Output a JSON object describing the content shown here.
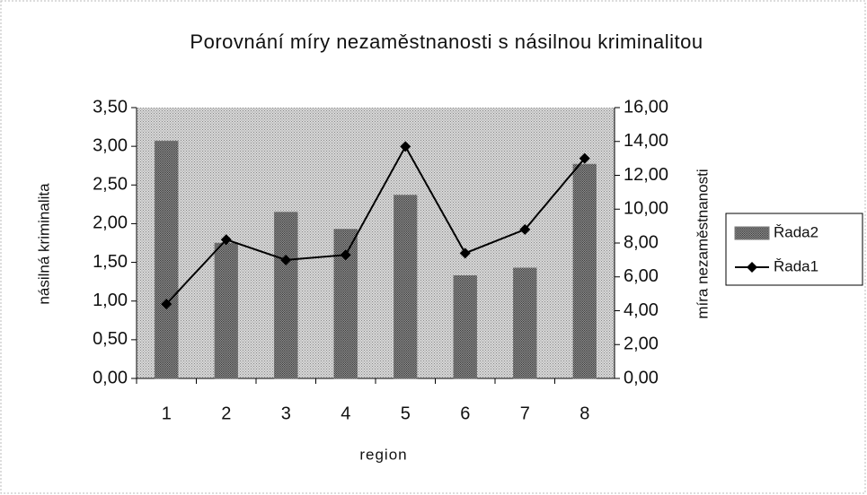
{
  "chart_data": {
    "type": "bar",
    "title": "Porovnání míry nezaměstnanosti s násilnou kriminalitou",
    "xlabel": "region",
    "ylabel": "násilná kriminalita",
    "y2label": "míra nezaměstnanosti",
    "categories": [
      "1",
      "2",
      "3",
      "4",
      "5",
      "6",
      "7",
      "8"
    ],
    "series": [
      {
        "name": "Řada2",
        "type": "bar",
        "color": "#7a7a7a",
        "values": [
          3.07,
          1.75,
          2.15,
          1.93,
          2.37,
          1.33,
          1.43,
          2.77
        ]
      },
      {
        "name": "Řada1",
        "type": "line",
        "axis": "y2",
        "color": "#000000",
        "values": [
          4.4,
          8.2,
          7.0,
          7.3,
          13.7,
          7.4,
          8.8,
          13.0
        ]
      }
    ],
    "ylim": [
      0,
      3.5
    ],
    "yticks": [
      {
        "value": 0,
        "label": "0,00"
      },
      {
        "value": 0.5,
        "label": "0,50"
      },
      {
        "value": 1,
        "label": "1,00"
      },
      {
        "value": 1.5,
        "label": "1,50"
      },
      {
        "value": 2,
        "label": "2,00"
      },
      {
        "value": 2.5,
        "label": "2,50"
      },
      {
        "value": 3,
        "label": "3,00"
      },
      {
        "value": 3.5,
        "label": "3,50"
      }
    ],
    "y2lim": [
      0,
      16
    ],
    "y2ticks": [
      {
        "value": 0,
        "label": "0,00"
      },
      {
        "value": 2,
        "label": "2,00"
      },
      {
        "value": 4,
        "label": "4,00"
      },
      {
        "value": 6,
        "label": "6,00"
      },
      {
        "value": 8,
        "label": "8,00"
      },
      {
        "value": 10,
        "label": "10,00"
      },
      {
        "value": 12,
        "label": "12,00"
      },
      {
        "value": 14,
        "label": "14,00"
      },
      {
        "value": 16,
        "label": "16,00"
      }
    ],
    "grid": false,
    "legend": "right",
    "plot_background": "#c9c9c9"
  }
}
